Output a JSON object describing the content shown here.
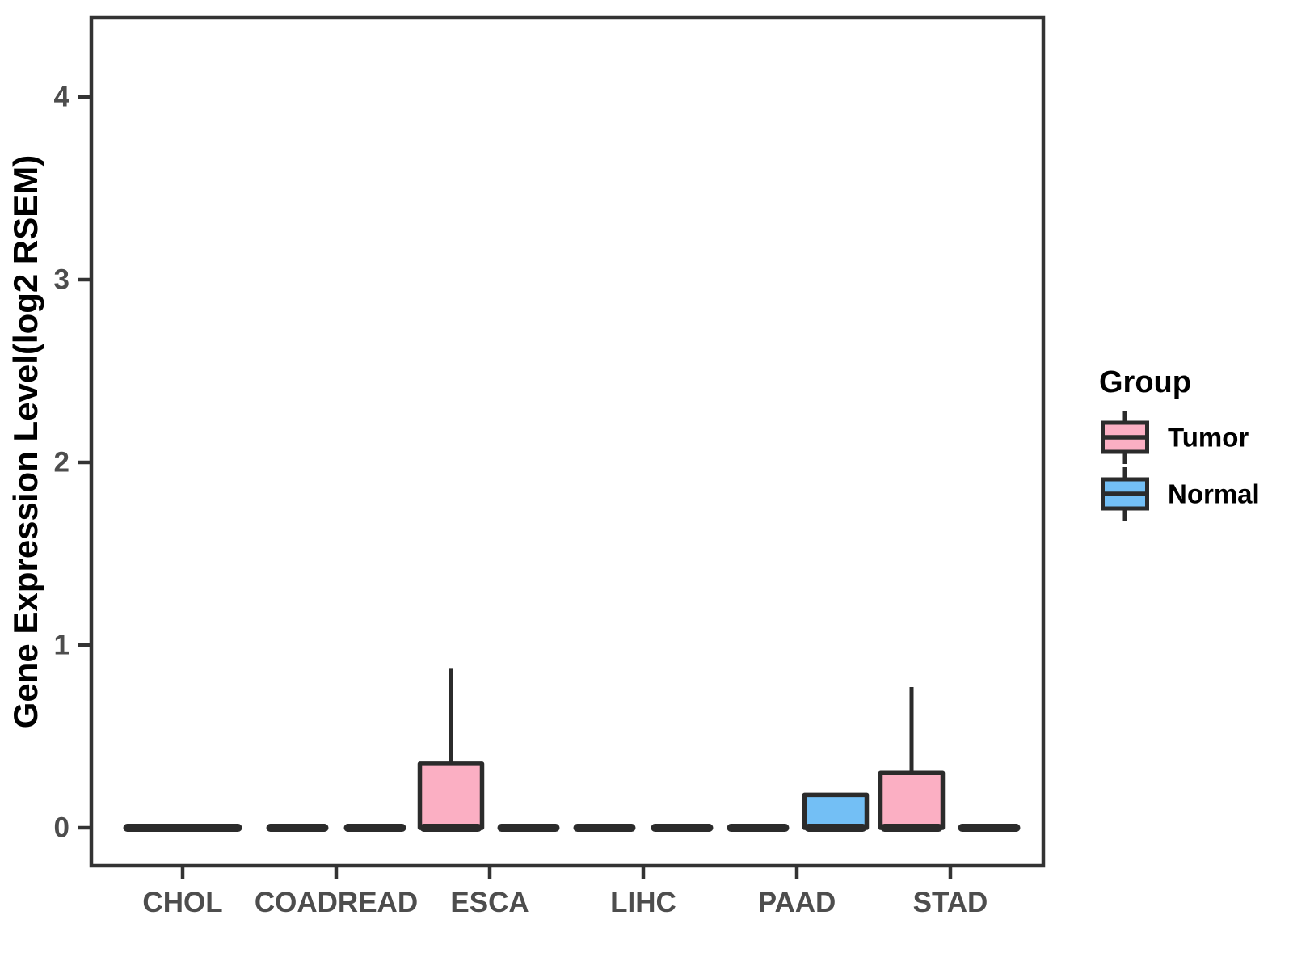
{
  "chart_data": {
    "type": "boxplot",
    "title": "",
    "xlabel": "",
    "ylabel": "Gene Expression Level(log2 RSEM)",
    "categories": [
      "CHOL",
      "COADREAD",
      "ESCA",
      "LIHC",
      "PAAD",
      "STAD"
    ],
    "yticks": [
      "0",
      "1",
      "2",
      "3",
      "4"
    ],
    "ylim": [
      -0.21,
      4.43
    ],
    "grid": false,
    "legend_position": "right",
    "legend": {
      "title": "Group",
      "entries": [
        {
          "label": "Tumor",
          "color": "#FBAFC3"
        },
        {
          "label": "Normal",
          "color": "#73BFF5"
        }
      ]
    },
    "series": [
      {
        "name": "Tumor",
        "color": "#FBAFC3",
        "boxes": [
          {
            "category": "CHOL",
            "min": 0,
            "q1": 0,
            "median": 0,
            "q3": 0,
            "max": 0,
            "full_width": true
          },
          {
            "category": "COADREAD",
            "min": 0,
            "q1": 0,
            "median": 0,
            "q3": 0,
            "max": 0
          },
          {
            "category": "ESCA",
            "min": 0,
            "q1": 0,
            "median": 0,
            "q3": 0.35,
            "max": 0.87
          },
          {
            "category": "LIHC",
            "min": 0,
            "q1": 0,
            "median": 0,
            "q3": 0,
            "max": 0
          },
          {
            "category": "PAAD",
            "min": 0,
            "q1": 0,
            "median": 0,
            "q3": 0,
            "max": 0
          },
          {
            "category": "STAD",
            "min": 0,
            "q1": 0,
            "median": 0,
            "q3": 0.3,
            "max": 0.77
          }
        ]
      },
      {
        "name": "Normal",
        "color": "#73BFF5",
        "boxes": [
          {
            "category": "CHOL",
            "absent": true
          },
          {
            "category": "COADREAD",
            "min": 0,
            "q1": 0,
            "median": 0,
            "q3": 0,
            "max": 0
          },
          {
            "category": "ESCA",
            "min": 0,
            "q1": 0,
            "median": 0,
            "q3": 0,
            "max": 0
          },
          {
            "category": "LIHC",
            "min": 0,
            "q1": 0,
            "median": 0,
            "q3": 0,
            "max": 0
          },
          {
            "category": "PAAD",
            "min": 0,
            "q1": 0,
            "median": 0,
            "q3": 0.18,
            "max": 0.18
          },
          {
            "category": "STAD",
            "min": 0,
            "q1": 0,
            "median": 0,
            "q3": 0,
            "max": 0
          }
        ]
      }
    ],
    "styles": {
      "box_border_color": "#2B2B2B",
      "axis_color": "#333333",
      "tick_label_color": "#4D4D4D",
      "title_color": "#000000",
      "background": "#FFFFFF"
    }
  }
}
